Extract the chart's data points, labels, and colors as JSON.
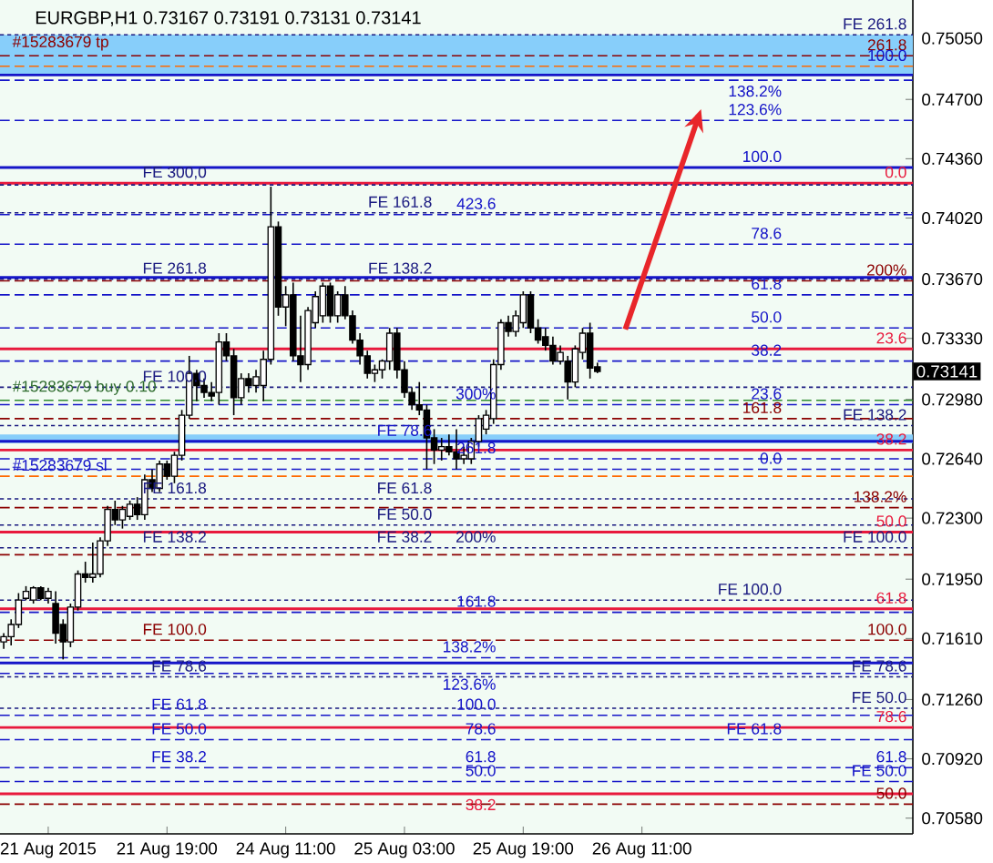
{
  "chart_data": {
    "type": "candlestick",
    "title": "EURGBP,H1  0.73167 0.73191 0.73131 0.73141",
    "categories": [
      null,
      null,
      null,
      null,
      null,
      null,
      "21 Aug 2015",
      null,
      null,
      null,
      null,
      null,
      null,
      null,
      null,
      null,
      null,
      null,
      null,
      null,
      null,
      null,
      "21 Aug 19:00",
      null,
      null,
      null,
      null,
      null,
      null,
      null,
      null,
      null,
      null,
      null,
      null,
      null,
      null,
      null,
      "24 Aug 11:00",
      null,
      null,
      null,
      null,
      null,
      null,
      null,
      null,
      null,
      null,
      null,
      null,
      null,
      null,
      null,
      "25 Aug 03:00",
      null,
      null,
      null,
      null,
      null,
      null,
      null,
      null,
      null,
      null,
      null,
      null,
      null,
      null,
      null,
      "25 Aug 19:00",
      null,
      null,
      null,
      null,
      null,
      null,
      null,
      null,
      null,
      null,
      null,
      null,
      null,
      null,
      null,
      "26 Aug 11:00",
      null,
      null,
      null,
      null,
      null,
      null,
      null,
      null,
      null,
      null,
      null,
      null,
      null,
      null,
      null,
      null,
      null,
      null,
      null,
      null,
      null,
      null,
      null,
      null,
      null,
      null,
      null,
      null,
      null,
      null,
      null,
      null,
      null,
      null,
      null,
      null
    ],
    "ohlc": [
      [
        0.7159,
        0.7164,
        0.7155,
        0.7162
      ],
      [
        0.7162,
        0.7172,
        0.7157,
        0.7169
      ],
      [
        0.7169,
        0.7187,
        0.7167,
        0.7183
      ],
      [
        0.7184,
        0.7191,
        0.7183,
        0.7188
      ],
      [
        0.7183,
        0.7191,
        0.7181,
        0.719
      ],
      [
        0.719,
        0.7191,
        0.7183,
        0.7184
      ],
      [
        0.7184,
        0.719,
        0.7181,
        0.7188
      ],
      [
        0.7181,
        0.7188,
        0.7158,
        0.7164
      ],
      [
        0.7169,
        0.7172,
        0.7149,
        0.7159
      ],
      [
        0.7159,
        0.7181,
        0.7156,
        0.7179
      ],
      [
        0.7179,
        0.72,
        0.7177,
        0.7198
      ],
      [
        0.7198,
        0.7205,
        0.7193,
        0.7196
      ],
      [
        0.7196,
        0.7216,
        0.7193,
        0.7198
      ],
      [
        0.7198,
        0.7219,
        0.7196,
        0.7217
      ],
      [
        0.7217,
        0.7237,
        0.7214,
        0.7235
      ],
      [
        0.7235,
        0.724,
        0.7226,
        0.7229
      ],
      [
        0.7229,
        0.7237,
        0.7224,
        0.7235
      ],
      [
        0.7231,
        0.724,
        0.7229,
        0.7238
      ],
      [
        0.7238,
        0.7242,
        0.7229,
        0.7232
      ],
      [
        0.7232,
        0.7255,
        0.7229,
        0.7252
      ],
      [
        0.7252,
        0.7258,
        0.7245,
        0.7247
      ],
      [
        0.7247,
        0.7263,
        0.7245,
        0.7261
      ],
      [
        0.7261,
        0.7263,
        0.7252,
        0.7254
      ],
      [
        0.7254,
        0.7268,
        0.725,
        0.7266
      ],
      [
        0.7266,
        0.7292,
        0.7263,
        0.7289
      ],
      [
        0.7289,
        0.7323,
        0.7287,
        0.7313
      ],
      [
        0.7313,
        0.7315,
        0.7297,
        0.7306
      ],
      [
        0.7306,
        0.731,
        0.7299,
        0.7302
      ],
      [
        0.7302,
        0.7308,
        0.7297,
        0.73
      ],
      [
        0.7302,
        0.7336,
        0.7295,
        0.7331
      ],
      [
        0.7331,
        0.7336,
        0.732,
        0.7323
      ],
      [
        0.7323,
        0.7327,
        0.7289,
        0.7299
      ],
      [
        0.7299,
        0.7313,
        0.7295,
        0.731
      ],
      [
        0.731,
        0.7313,
        0.7302,
        0.7306
      ],
      [
        0.7306,
        0.7315,
        0.7302,
        0.7311
      ],
      [
        0.7306,
        0.7326,
        0.7297,
        0.7321
      ],
      [
        0.7321,
        0.742,
        0.7318,
        0.7397
      ],
      [
        0.7397,
        0.74,
        0.7346,
        0.7351
      ],
      [
        0.7351,
        0.7363,
        0.734,
        0.7358
      ],
      [
        0.7358,
        0.7365,
        0.732,
        0.7323
      ],
      [
        0.7323,
        0.7346,
        0.7308,
        0.7318
      ],
      [
        0.7318,
        0.7351,
        0.7315,
        0.7349
      ],
      [
        0.7342,
        0.736,
        0.7339,
        0.7357
      ],
      [
        0.7346,
        0.7365,
        0.7342,
        0.7363
      ],
      [
        0.7363,
        0.7365,
        0.7342,
        0.7346
      ],
      [
        0.7346,
        0.736,
        0.7342,
        0.7358
      ],
      [
        0.7358,
        0.7363,
        0.7344,
        0.7346
      ],
      [
        0.7346,
        0.7349,
        0.733,
        0.7332
      ],
      [
        0.7332,
        0.7336,
        0.7318,
        0.7323
      ],
      [
        0.7323,
        0.7326,
        0.731,
        0.7313
      ],
      [
        0.7313,
        0.7318,
        0.7308,
        0.7315
      ],
      [
        0.7315,
        0.7321,
        0.731,
        0.732
      ],
      [
        0.732,
        0.7339,
        0.7315,
        0.7336
      ],
      [
        0.7336,
        0.7339,
        0.731,
        0.7315
      ],
      [
        0.7315,
        0.732,
        0.7299,
        0.7302
      ],
      [
        0.7302,
        0.7305,
        0.7292,
        0.7295
      ],
      [
        0.7295,
        0.7308,
        0.7289,
        0.7292
      ],
      [
        0.7292,
        0.7295,
        0.7258,
        0.7276
      ],
      [
        0.7276,
        0.7281,
        0.7261,
        0.7269
      ],
      [
        0.7269,
        0.7276,
        0.7263,
        0.7271
      ],
      [
        0.7271,
        0.7278,
        0.7266,
        0.7268
      ],
      [
        0.7268,
        0.7281,
        0.7258,
        0.7264
      ],
      [
        0.7264,
        0.7271,
        0.7261,
        0.7266
      ],
      [
        0.7264,
        0.7276,
        0.7261,
        0.7274
      ],
      [
        0.7274,
        0.7289,
        0.7271,
        0.7287
      ],
      [
        0.7281,
        0.7292,
        0.7278,
        0.7289
      ],
      [
        0.7287,
        0.7321,
        0.7284,
        0.7318
      ],
      [
        0.7318,
        0.7344,
        0.7315,
        0.7342
      ],
      [
        0.7342,
        0.7346,
        0.7334,
        0.7337
      ],
      [
        0.7337,
        0.7349,
        0.7334,
        0.7346
      ],
      [
        0.7342,
        0.736,
        0.7339,
        0.7358
      ],
      [
        0.7358,
        0.736,
        0.7336,
        0.7339
      ],
      [
        0.7339,
        0.7344,
        0.733,
        0.7332
      ],
      [
        0.7334,
        0.7339,
        0.7326,
        0.7329
      ],
      [
        0.7329,
        0.7334,
        0.7318,
        0.732
      ],
      [
        0.732,
        0.7329,
        0.7318,
        0.7325
      ],
      [
        0.732,
        0.7323,
        0.7298,
        0.7308
      ],
      [
        0.7308,
        0.7329,
        0.7305,
        0.7327
      ],
      [
        0.7325,
        0.7339,
        0.7321,
        0.7336
      ],
      [
        0.7336,
        0.7342,
        0.731,
        0.7316
      ],
      [
        0.73167,
        0.73191,
        0.73131,
        0.73141
      ],
      null,
      null,
      null,
      null,
      null,
      null,
      null,
      null,
      null,
      null,
      null,
      null,
      null,
      null,
      null,
      null,
      null,
      null,
      null,
      null,
      null,
      null,
      null,
      null,
      null,
      null,
      null,
      null,
      null,
      null,
      null,
      null,
      null,
      null,
      null,
      null,
      null,
      null,
      null,
      null,
      null,
      null
    ],
    "ylim": [
      0.7049,
      0.7527
    ],
    "yticks": [
      {
        "value": 0.7505,
        "label": "0.75050"
      },
      {
        "value": 0.747,
        "label": "0.74700"
      },
      {
        "value": 0.7436,
        "label": "0.74360"
      },
      {
        "value": 0.7402,
        "label": "0.74020"
      },
      {
        "value": 0.7367,
        "label": "0.73670"
      },
      {
        "value": 0.7333,
        "label": "0.73330"
      },
      {
        "value": 0.7298,
        "label": "0.72980"
      },
      {
        "value": 0.7264,
        "label": "0.72640"
      },
      {
        "value": 0.723,
        "label": "0.72300"
      },
      {
        "value": 0.7195,
        "label": "0.71950"
      },
      {
        "value": 0.7161,
        "label": "0.71610"
      },
      {
        "value": 0.7126,
        "label": "0.71260"
      },
      {
        "value": 0.7092,
        "label": "0.70920"
      },
      {
        "value": 0.7058,
        "label": "0.70580"
      }
    ],
    "bands": [
      {
        "axis": "y",
        "from": 0.7484,
        "to": 0.7507,
        "color": "#87cefa"
      },
      {
        "axis": "y",
        "from": 0.7273,
        "to": 0.7278,
        "color": "#87cefa"
      }
    ],
    "ref_lines": [
      {
        "axis": "y",
        "value": 0.7507,
        "color": "#1a1a80",
        "line_style": "dotted"
      },
      {
        "axis": "y",
        "value": 0.7495,
        "color": "#8b0000",
        "line_style": "dashed"
      },
      {
        "axis": "y",
        "value": 0.7489,
        "color": "#ff6a00",
        "line_style": "dashed"
      },
      {
        "axis": "y",
        "value": 0.7484,
        "color": "#1515c8",
        "line_style": "solid"
      },
      {
        "axis": "y",
        "value": 0.7481,
        "color": "#1515c8",
        "line_style": "dashed"
      },
      {
        "axis": "y",
        "value": 0.7458,
        "color": "#1515c8",
        "line_style": "dashed"
      },
      {
        "axis": "y",
        "value": 0.7431,
        "color": "#1515c8",
        "line_style": "solid"
      },
      {
        "axis": "y",
        "value": 0.7422,
        "color": "#e8193c",
        "line_style": "solid"
      },
      {
        "axis": "y",
        "value": 0.7421,
        "color": "#1a1a80",
        "line_style": "dotted"
      },
      {
        "axis": "y",
        "value": 0.7405,
        "color": "#1a1a80",
        "line_style": "dotted"
      },
      {
        "axis": "y",
        "value": 0.7404,
        "color": "#1515c8",
        "line_style": "dashed"
      },
      {
        "axis": "y",
        "value": 0.7387,
        "color": "#1515c8",
        "line_style": "dashed"
      },
      {
        "axis": "y",
        "value": 0.7367,
        "color": "#1a1a80",
        "line_style": "dotted"
      },
      {
        "axis": "y",
        "value": 0.7368,
        "color": "#1515c8",
        "line_style": "solid"
      },
      {
        "axis": "y",
        "value": 0.7366,
        "color": "#8b0000",
        "line_style": "dashed"
      },
      {
        "axis": "y",
        "value": 0.7358,
        "color": "#1515c8",
        "line_style": "dashed"
      },
      {
        "axis": "y",
        "value": 0.7339,
        "color": "#1515c8",
        "line_style": "dashed"
      },
      {
        "axis": "y",
        "value": 0.7327,
        "color": "#e8193c",
        "line_style": "solid"
      },
      {
        "axis": "y",
        "value": 0.732,
        "color": "#1515c8",
        "line_style": "dashed"
      },
      {
        "axis": "y",
        "value": 0.7305,
        "color": "#1a1a80",
        "line_style": "dotted"
      },
      {
        "axis": "y",
        "value": 0.72975,
        "color": "#2e8b2e",
        "line_style": "dashed"
      },
      {
        "axis": "y",
        "value": 0.7295,
        "color": "#1515c8",
        "line_style": "dashed"
      },
      {
        "axis": "y",
        "value": 0.7287,
        "color": "#8b0000",
        "line_style": "dashed"
      },
      {
        "axis": "y",
        "value": 0.7283,
        "color": "#1a1a80",
        "line_style": "dotted"
      },
      {
        "axis": "y",
        "value": 0.7274,
        "color": "#1515c8",
        "line_style": "solid"
      },
      {
        "axis": "y",
        "value": 0.7269,
        "color": "#e8193c",
        "line_style": "solid"
      },
      {
        "axis": "y",
        "value": 0.7264,
        "color": "#1515c8",
        "line_style": "dashed"
      },
      {
        "axis": "y",
        "value": 0.7258,
        "color": "#1515c8",
        "line_style": "dashed"
      },
      {
        "axis": "y",
        "value": 0.7254,
        "color": "#ff6a00",
        "line_style": "dashed"
      },
      {
        "axis": "y",
        "value": 0.7241,
        "color": "#1a1a80",
        "line_style": "dotted"
      },
      {
        "axis": "y",
        "value": 0.7236,
        "color": "#8b0000",
        "line_style": "dashed"
      },
      {
        "axis": "y",
        "value": 0.7226,
        "color": "#1a1a80",
        "line_style": "dotted"
      },
      {
        "axis": "y",
        "value": 0.7222,
        "color": "#e8193c",
        "line_style": "solid"
      },
      {
        "axis": "y",
        "value": 0.7213,
        "color": "#1a1a80",
        "line_style": "dotted"
      },
      {
        "axis": "y",
        "value": 0.7209,
        "color": "#8b0000",
        "line_style": "dashed"
      },
      {
        "axis": "y",
        "value": 0.7183,
        "color": "#1a1a80",
        "line_style": "dotted"
      },
      {
        "axis": "y",
        "value": 0.7178,
        "color": "#e8193c",
        "line_style": "solid"
      },
      {
        "axis": "y",
        "value": 0.7176,
        "color": "#1515c8",
        "line_style": "dashed"
      },
      {
        "axis": "y",
        "value": 0.716,
        "color": "#8b0000",
        "line_style": "dashed"
      },
      {
        "axis": "y",
        "value": 0.715,
        "color": "#1515c8",
        "line_style": "dashed"
      },
      {
        "axis": "y",
        "value": 0.7147,
        "color": "#1515c8",
        "line_style": "solid"
      },
      {
        "axis": "y",
        "value": 0.7141,
        "color": "#1515c8",
        "line_style": "dashed"
      },
      {
        "axis": "y",
        "value": 0.7139,
        "color": "#1a1a80",
        "line_style": "dotted"
      },
      {
        "axis": "y",
        "value": 0.7121,
        "color": "#1a1a80",
        "line_style": "dotted"
      },
      {
        "axis": "y",
        "value": 0.7117,
        "color": "#1515c8",
        "line_style": "dashed"
      },
      {
        "axis": "y",
        "value": 0.711,
        "color": "#e8193c",
        "line_style": "solid"
      },
      {
        "axis": "y",
        "value": 0.7103,
        "color": "#1515c8",
        "line_style": "dashed"
      },
      {
        "axis": "y",
        "value": 0.7087,
        "color": "#1515c8",
        "line_style": "dashed"
      },
      {
        "axis": "y",
        "value": 0.7079,
        "color": "#1515c8",
        "line_style": "dashed"
      },
      {
        "axis": "y",
        "value": 0.7072,
        "color": "#e8193c",
        "line_style": "solid"
      },
      {
        "axis": "y",
        "value": 0.7066,
        "color": "#8b0000",
        "line_style": "dashed"
      }
    ],
    "annotations": [
      "0.73141",
      {
        "text": "FE 261.8",
        "y": 0.7507
      },
      {
        "text": "261.8",
        "y": 0.7495
      },
      {
        "text": "#15283679 tp",
        "y": 0.7495
      },
      {
        "text": "100.0",
        "y": 0.7489
      },
      {
        "text": "138.2%",
        "y": 0.7481
      },
      {
        "text": "123.6%",
        "y": 0.7458
      },
      {
        "text": "100.0",
        "y": 0.7431
      },
      {
        "text": "0.0",
        "y": 0.7422
      },
      {
        "text": "FE 300,0",
        "y": 0.7421
      },
      {
        "text": "FE 161.8",
        "y": 0.7405
      },
      {
        "text": "423.6",
        "y": 0.7404
      },
      {
        "text": "78.6",
        "y": 0.7387
      },
      {
        "text": "FE 261.8",
        "y": 0.7367
      },
      {
        "text": "FE 138.2",
        "y": 0.7367
      },
      {
        "text": "200%",
        "y": 0.7366
      },
      {
        "text": "61.8",
        "y": 0.7358
      },
      {
        "text": "50.0",
        "y": 0.7339
      },
      {
        "text": "23.6",
        "y": 0.7327
      },
      {
        "text": "38.2",
        "y": 0.732
      },
      {
        "text": "FE 100.0",
        "y": 0.7305
      },
      {
        "text": "#15283679 buy 0.10",
        "y": 0.72975
      },
      {
        "text": "23.6",
        "y": 0.7295
      },
      {
        "text": "300%",
        "y": 0.7295
      },
      {
        "text": "161.8",
        "y": 0.7287
      },
      {
        "text": "FE 138.2",
        "y": 0.7283
      },
      {
        "text": "FE 78.6",
        "y": 0.7274
      },
      {
        "text": "38.2",
        "y": 0.7269
      },
      {
        "text": "261.8",
        "y": 0.7264
      },
      {
        "text": "0.0",
        "y": 0.7258
      },
      {
        "text": "#15283679 sl",
        "y": 0.7254
      },
      {
        "text": "FE 61.8",
        "y": 0.7241
      },
      {
        "text": "FE 161.8",
        "y": 0.7241
      },
      {
        "text": "138.2%",
        "y": 0.7236
      },
      {
        "text": "FE 50.0",
        "y": 0.7226
      },
      {
        "text": "50.0",
        "y": 0.7222
      },
      {
        "text": "FE 138.2",
        "y": 0.7213
      },
      {
        "text": "FE 38.2",
        "y": 0.7213
      },
      {
        "text": "200%",
        "y": 0.7213
      },
      {
        "text": "FE 100.0",
        "y": 0.7213
      },
      {
        "text": "FE 100.0",
        "y": 0.7183
      },
      {
        "text": "61.8",
        "y": 0.7178
      },
      {
        "text": "161.8",
        "y": 0.7176
      },
      {
        "text": "100.0",
        "y": 0.716
      },
      {
        "text": "FE 100.0",
        "y": 0.716
      },
      {
        "text": "138.2%",
        "y": 0.715
      },
      {
        "text": "123.6%",
        "y": 0.7141
      },
      {
        "text": "FE 78.6",
        "y": 0.7139
      },
      {
        "text": "FE 78.6",
        "y": 0.7139
      },
      {
        "text": "FE 50.0",
        "y": 0.7121
      },
      {
        "text": "100.0",
        "y": 0.7117
      },
      {
        "text": "FE 61.8",
        "y": 0.7117
      },
      {
        "text": "78.6",
        "y": 0.711
      },
      {
        "text": "78.6",
        "y": 0.7103
      },
      {
        "text": "FE 50.0",
        "y": 0.7103
      },
      {
        "text": "FE 61.8",
        "y": 0.7103
      },
      {
        "text": "61.8",
        "y": 0.7087
      },
      {
        "text": "61.8",
        "y": 0.7087
      },
      {
        "text": "FE 38.2",
        "y": 0.7087
      },
      {
        "text": "50.0",
        "y": 0.7079
      },
      {
        "text": "FE 50.0",
        "y": 0.7079
      },
      {
        "text": "38.2",
        "y": 0.7072
      },
      {
        "text": "50.0",
        "y": 0.7066
      }
    ]
  }
}
